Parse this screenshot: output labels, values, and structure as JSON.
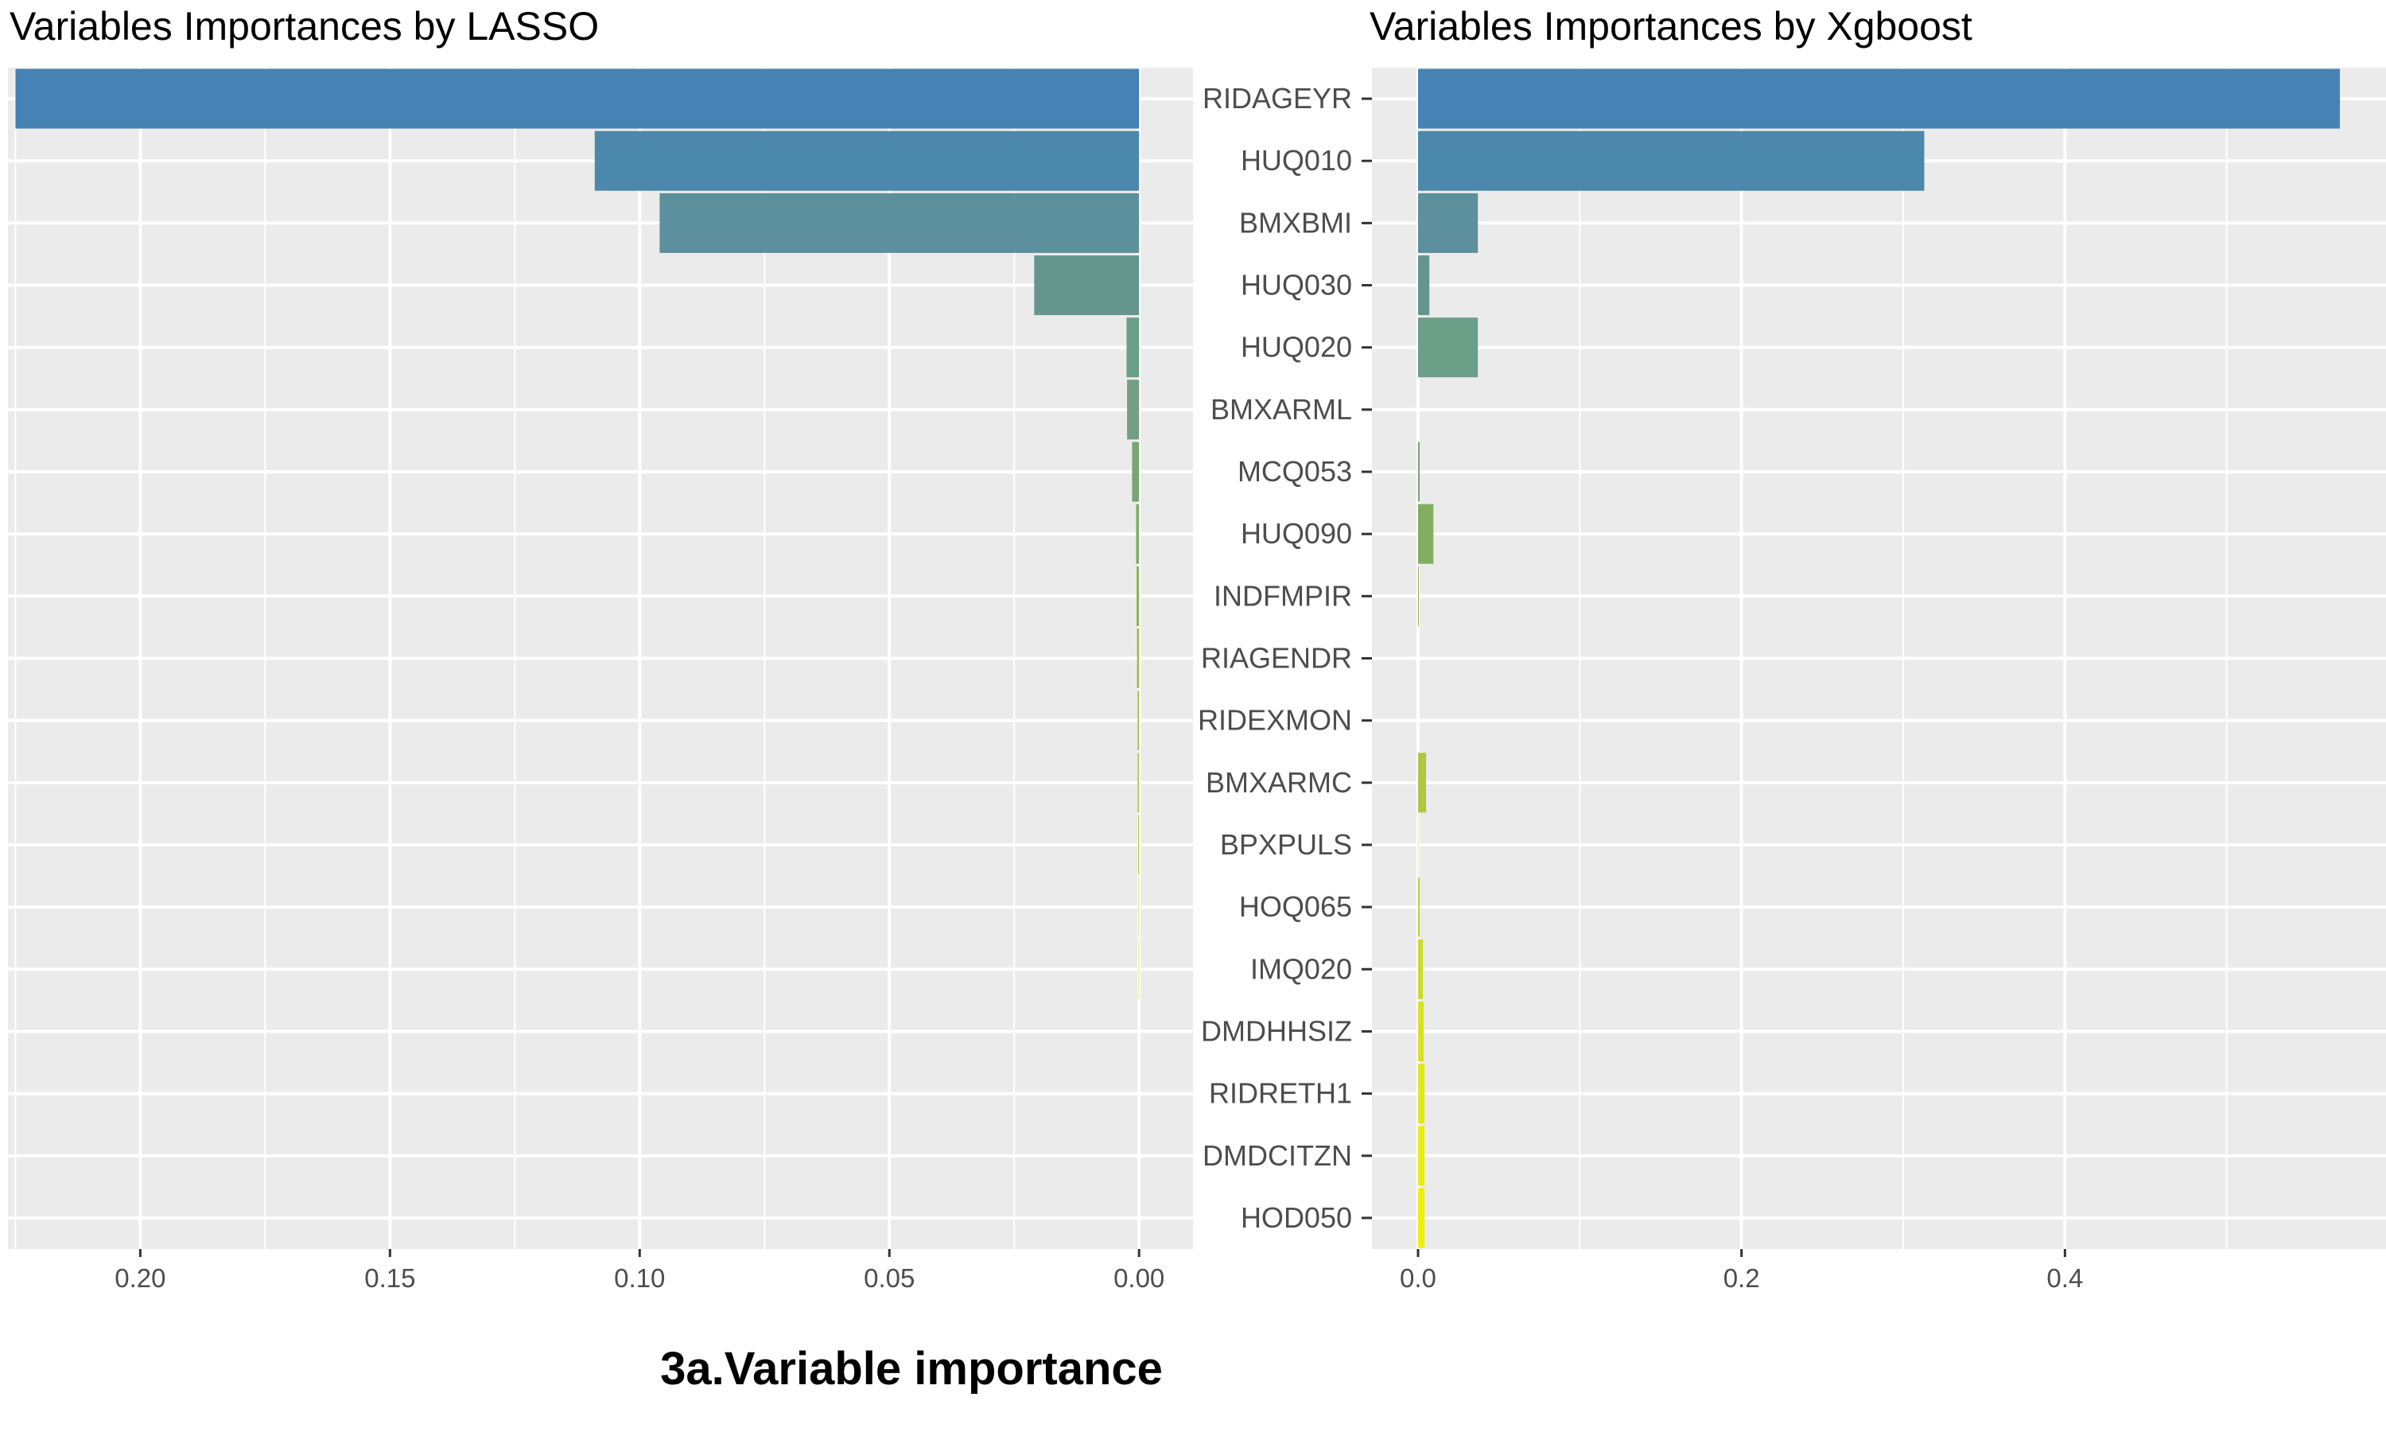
{
  "figure_caption": "3a.Variable importance",
  "chart_data": [
    {
      "type": "bar",
      "orientation": "horizontal",
      "title": "Variables Importances by LASSO",
      "xlabel": "",
      "ylabel": "",
      "x_reversed": true,
      "xlim": [
        0.2265,
        -0.0108
      ],
      "xticks": [
        "0.20",
        "0.15",
        "0.10",
        "0.05",
        "0.00"
      ],
      "xtick_values": [
        0.2,
        0.15,
        0.1,
        0.05,
        0.0
      ],
      "grid": true,
      "categories": [
        "RIDAGEYR",
        "HUQ010",
        "BMXBMI",
        "HUQ030",
        "HUQ020",
        "BMXARML",
        "MCQ053",
        "HUQ090",
        "INDFMPIR",
        "RIAGENDR",
        "RIDEXMON",
        "BMXARMC",
        "BPXPULS",
        "HOQ065",
        "IMQ020",
        "DMDHHSIZ",
        "RIDRETH1",
        "DMDCITZN",
        "HOD050"
      ],
      "values": [
        0.225,
        0.109,
        0.096,
        0.021,
        0.0025,
        0.0024,
        0.0014,
        0.0006,
        0.0005,
        0.0004,
        0.0003,
        0.0003,
        0.0002,
        0.0001,
        0.0001,
        0.0,
        0.0,
        0.0,
        0.0
      ]
    },
    {
      "type": "bar",
      "orientation": "horizontal",
      "title": "Variables Importances by Xgboost",
      "xlabel": "",
      "ylabel": "",
      "x_reversed": false,
      "xlim": [
        -0.0285,
        0.5985
      ],
      "xticks": [
        "0.0",
        "0.2",
        "0.4"
      ],
      "xtick_values": [
        0.0,
        0.2,
        0.4
      ],
      "grid": true,
      "categories": [
        "RIDAGEYR",
        "HUQ010",
        "BMXBMI",
        "HUQ030",
        "HUQ020",
        "BMXARML",
        "MCQ053",
        "HUQ090",
        "INDFMPIR",
        "RIAGENDR",
        "RIDEXMON",
        "BMXARMC",
        "BPXPULS",
        "HOQ065",
        "IMQ020",
        "DMDHHSIZ",
        "RIDRETH1",
        "DMDCITZN",
        "HOD050"
      ],
      "values": [
        0.57,
        0.313,
        0.037,
        0.007,
        0.037,
        0.0,
        0.001,
        0.0095,
        0.0005,
        0.0,
        0.0,
        0.005,
        0.0002,
        0.001,
        0.003,
        0.0035,
        0.004,
        0.004,
        0.004
      ]
    }
  ],
  "colors": {
    "panel_background": "#ebebeb",
    "grid_major": "#ffffff",
    "tick_text": "#4d4d4d",
    "bar_gradient": [
      "#4682b4",
      "#4c88ab",
      "#5b909c",
      "#64968e",
      "#6c9f88",
      "#739f82",
      "#7aa475",
      "#84ad62",
      "#8fb254",
      "#98b84b",
      "#a4bf44",
      "#aec841",
      "#b5cd3d",
      "#bfd535",
      "#c9db2c",
      "#d4e222",
      "#dfe918",
      "#e8ee10",
      "#efef08"
    ]
  }
}
